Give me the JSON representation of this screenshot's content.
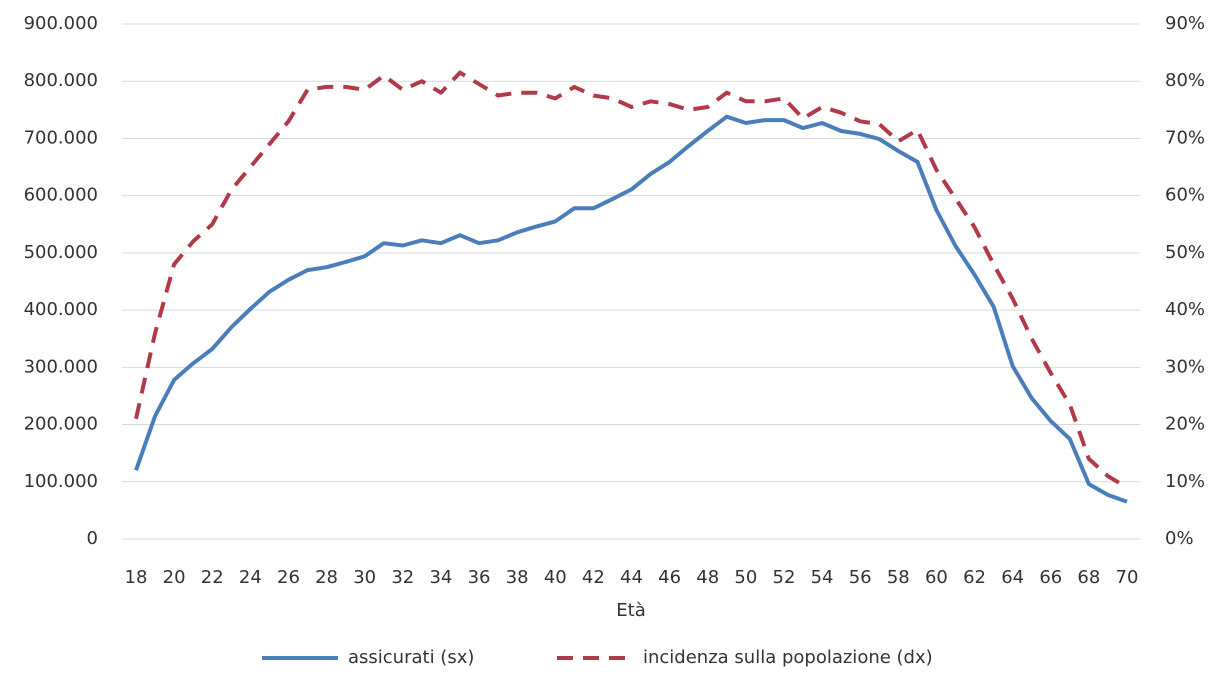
{
  "chart_data": {
    "type": "line",
    "x_label": "Età",
    "x": [
      18,
      19,
      20,
      21,
      22,
      23,
      24,
      25,
      26,
      27,
      28,
      29,
      30,
      31,
      32,
      33,
      34,
      35,
      36,
      37,
      38,
      39,
      40,
      41,
      42,
      43,
      44,
      45,
      46,
      47,
      48,
      49,
      50,
      51,
      52,
      53,
      54,
      55,
      56,
      57,
      58,
      59,
      60,
      61,
      62,
      63,
      64,
      65,
      66,
      67,
      68,
      69,
      70
    ],
    "xlim": [
      18,
      70
    ],
    "xticks": [
      18,
      20,
      22,
      24,
      26,
      28,
      30,
      32,
      34,
      36,
      38,
      40,
      42,
      44,
      46,
      48,
      50,
      52,
      54,
      56,
      58,
      60,
      62,
      64,
      66,
      68,
      70
    ],
    "ylim": [
      0,
      900000
    ],
    "yticks": [
      0,
      {
        "value": 100000,
        "label": "100.000"
      },
      {
        "value": 200000,
        "label": "200.000"
      },
      {
        "value": 300000,
        "label": "300.000"
      },
      {
        "value": 400000,
        "label": "400.000"
      },
      {
        "value": 500000,
        "label": "500.000"
      },
      {
        "value": 600000,
        "label": "600.000"
      },
      {
        "value": 700000,
        "label": "700.000"
      },
      {
        "value": 800000,
        "label": "800.000"
      },
      {
        "value": 900000,
        "label": "900.000"
      }
    ],
    "y2lim": [
      0,
      90
    ],
    "y2ticks": [
      {
        "value": 0,
        "label": "0%"
      },
      {
        "value": 10,
        "label": "10%"
      },
      {
        "value": 20,
        "label": "20%"
      },
      {
        "value": 30,
        "label": "30%"
      },
      {
        "value": 40,
        "label": "40%"
      },
      {
        "value": 50,
        "label": "50%"
      },
      {
        "value": 60,
        "label": "60%"
      },
      {
        "value": 70,
        "label": "70%"
      },
      {
        "value": 80,
        "label": "80%"
      },
      {
        "value": 90,
        "label": "90%"
      }
    ],
    "grid": true,
    "legend": "bottom",
    "series": [
      {
        "name": "assicurati (sx)",
        "color": "#4a7ebb",
        "dash": false,
        "values": [
          120000,
          215000,
          278000,
          307000,
          332000,
          370000,
          402000,
          432000,
          453000,
          470000,
          475000,
          484000,
          494000,
          517000,
          513000,
          522000,
          517000,
          531000,
          517000,
          522000,
          536000,
          546000,
          555000,
          578000,
          578000,
          594000,
          611000,
          638000,
          659000,
          687000,
          713000,
          738000,
          727000,
          732000,
          732000,
          718000,
          727000,
          713000,
          708000,
          699000,
          678000,
          659000,
          575000,
          512000,
          462000,
          406000,
          302000,
          246000,
          206000,
          175000,
          96000,
          77000,
          65000
        ]
      },
      {
        "name": "incidenza sulla popolazione (dx)",
        "color": "#b23a48",
        "dash": true,
        "axis": "y2",
        "values": [
          21,
          36,
          48,
          52,
          55,
          61,
          65,
          69,
          73,
          78.5,
          79,
          79,
          78.5,
          81,
          78.5,
          80,
          78,
          81.5,
          79.5,
          77.5,
          78,
          78,
          77,
          79,
          77.5,
          77,
          75.5,
          76.5,
          76,
          75,
          75.5,
          78,
          76.5,
          76.5,
          77,
          73.5,
          75.5,
          74.5,
          73,
          72.5,
          69.5,
          71.5,
          64.5,
          59.5,
          54.5,
          48,
          42,
          35,
          29,
          23.5,
          14,
          11,
          9
        ]
      }
    ]
  }
}
